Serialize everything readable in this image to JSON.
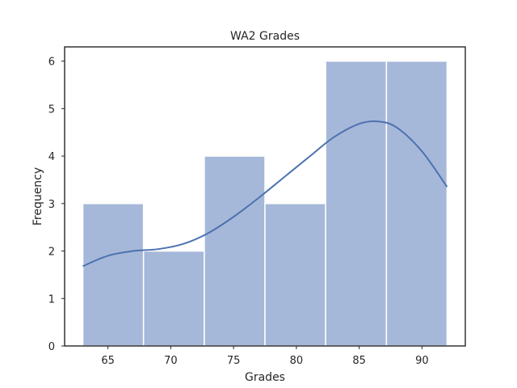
{
  "chart_data": {
    "type": "bar",
    "title": "WA2 Grades",
    "xlabel": "Grades",
    "ylabel": "Frequency",
    "bins": [
      {
        "start": 63.0,
        "end": 67.83,
        "count": 3
      },
      {
        "start": 67.83,
        "end": 72.67,
        "count": 2
      },
      {
        "start": 72.67,
        "end": 77.5,
        "count": 4
      },
      {
        "start": 77.5,
        "end": 82.33,
        "count": 3
      },
      {
        "start": 82.33,
        "end": 87.17,
        "count": 6
      },
      {
        "start": 87.17,
        "end": 92.0,
        "count": 6
      }
    ],
    "kde": {
      "x": [
        63,
        65,
        67,
        69,
        71,
        73,
        75,
        77,
        79,
        81,
        83,
        85,
        86.5,
        88,
        90,
        92
      ],
      "y": [
        1.68,
        1.9,
        2.0,
        2.04,
        2.15,
        2.38,
        2.72,
        3.12,
        3.55,
        3.98,
        4.4,
        4.68,
        4.73,
        4.6,
        4.1,
        3.35
      ]
    },
    "xticks": [
      65,
      70,
      75,
      80,
      85,
      90
    ],
    "yticks": [
      0,
      1,
      2,
      3,
      4,
      5,
      6
    ],
    "xlim": [
      61.55,
      93.45
    ],
    "ylim": [
      0,
      6.3
    ],
    "grid": false,
    "colors": {
      "bar_fill": "#a6b8d9",
      "bar_edge": "#ffffff",
      "kde_line": "#4c72b0",
      "axes": "#262626"
    }
  }
}
